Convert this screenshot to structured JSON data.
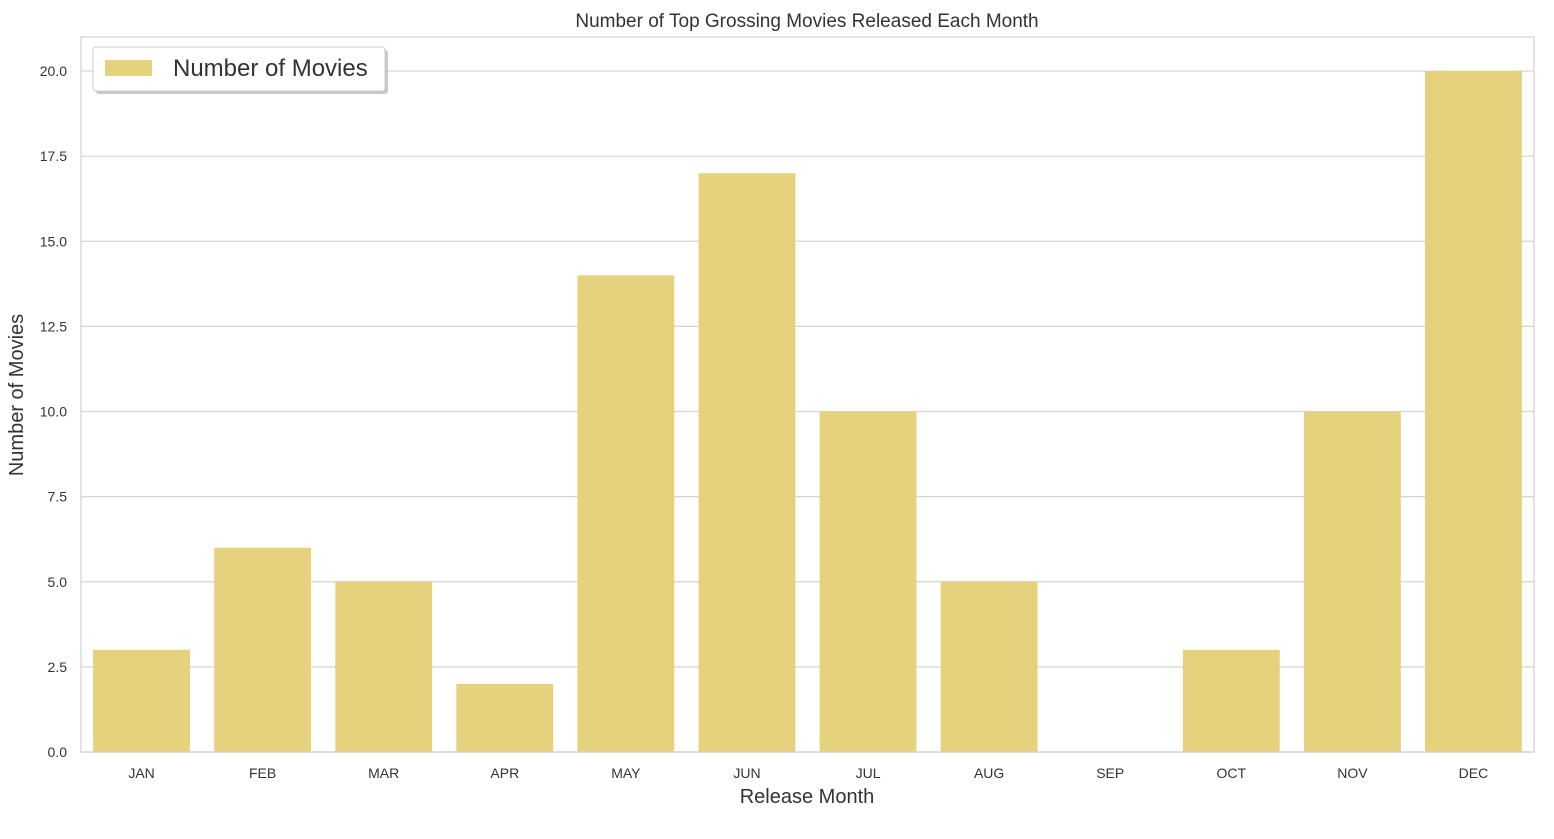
{
  "chart_data": {
    "type": "bar",
    "title": "Number of Top Grossing Movies Released Each Month",
    "xlabel": "Release Month",
    "ylabel": "Number of Movies",
    "categories": [
      "JAN",
      "FEB",
      "MAR",
      "APR",
      "MAY",
      "JUN",
      "JUL",
      "AUG",
      "SEP",
      "OCT",
      "NOV",
      "DEC"
    ],
    "series": [
      {
        "name": "Number of Movies",
        "values": [
          3,
          6,
          5,
          2,
          14,
          17,
          10,
          5,
          0,
          3,
          10,
          20
        ],
        "color": "#e6d27d"
      }
    ],
    "ylim": [
      0,
      21
    ],
    "yticks": [
      "0.0",
      "2.5",
      "5.0",
      "7.5",
      "10.0",
      "12.5",
      "15.0",
      "17.5",
      "20.0"
    ],
    "grid": "horizontal",
    "legend_position": "top-left"
  }
}
